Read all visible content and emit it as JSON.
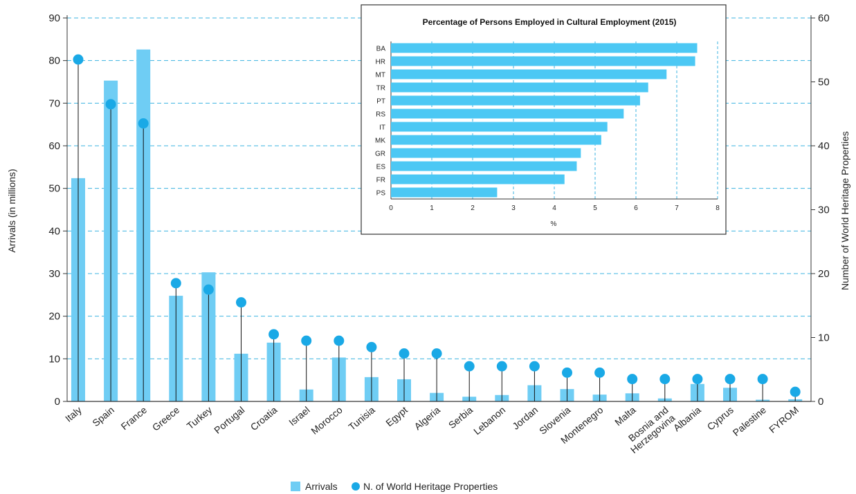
{
  "chart_data": [
    {
      "type": "bar",
      "title": "",
      "categories": [
        "Italy",
        "Spain",
        "France",
        "Greece",
        "Turkey",
        "Portugal",
        "Croatia",
        "Israel",
        "Morocco",
        "Tunisia",
        "Egypt",
        "Algeria",
        "Serbia",
        "Lebanon",
        "Jordan",
        "Slovenia",
        "Montenegro",
        "Malta",
        "Bosnia and Herzegovina",
        "Albania",
        "Cyprus",
        "Palestine",
        "FYROM"
      ],
      "xlabel": "",
      "ylabel": "Arrivals (in millions)",
      "ylabel_right": "Number of World Heritage Properties",
      "ylim": [
        0,
        90
      ],
      "ylim_right": [
        0,
        60
      ],
      "yticks": [
        0,
        10,
        20,
        30,
        40,
        50,
        60,
        70,
        80,
        90
      ],
      "yticks_right": [
        0,
        10,
        20,
        30,
        40,
        50,
        60
      ],
      "grid": true,
      "legend_position": "bottom",
      "series": [
        {
          "name": "Arrivals",
          "type": "bar",
          "axis": "left",
          "color": "#6fcdf4",
          "values": [
            52.4,
            75.3,
            82.6,
            24.8,
            30.3,
            11.2,
            13.8,
            2.8,
            10.3,
            5.7,
            5.2,
            2.0,
            1.1,
            1.5,
            3.8,
            2.9,
            1.6,
            1.9,
            0.7,
            4.1,
            3.2,
            0.4,
            0.5
          ]
        },
        {
          "name": "N. of World Heritage Properties",
          "type": "lollipop",
          "axis": "right",
          "color": "#1aa9e6",
          "values": [
            53.5,
            46.5,
            43.5,
            18.5,
            17.5,
            15.5,
            10.5,
            9.5,
            9.5,
            8.5,
            7.5,
            7.5,
            5.5,
            5.5,
            5.5,
            4.5,
            4.5,
            3.5,
            3.5,
            3.5,
            3.5,
            3.5,
            1.5
          ]
        }
      ]
    },
    {
      "type": "bar",
      "orientation": "horizontal",
      "title": "Percentage of Persons Employed in Cultural Employment (2015)",
      "categories": [
        "BA",
        "HR",
        "MT",
        "TR",
        "PT",
        "RS",
        "IT",
        "MK",
        "GR",
        "ES",
        "FR",
        "PS"
      ],
      "values": [
        7.5,
        7.45,
        6.75,
        6.3,
        6.1,
        5.7,
        5.3,
        5.15,
        4.65,
        4.55,
        4.25,
        2.6
      ],
      "xlabel": "%",
      "ylabel": "",
      "xlim": [
        0,
        8
      ],
      "xticks": [
        0,
        1,
        2,
        3,
        4,
        5,
        6,
        7,
        8
      ],
      "grid": true,
      "color": "#4cc8f4"
    }
  ]
}
